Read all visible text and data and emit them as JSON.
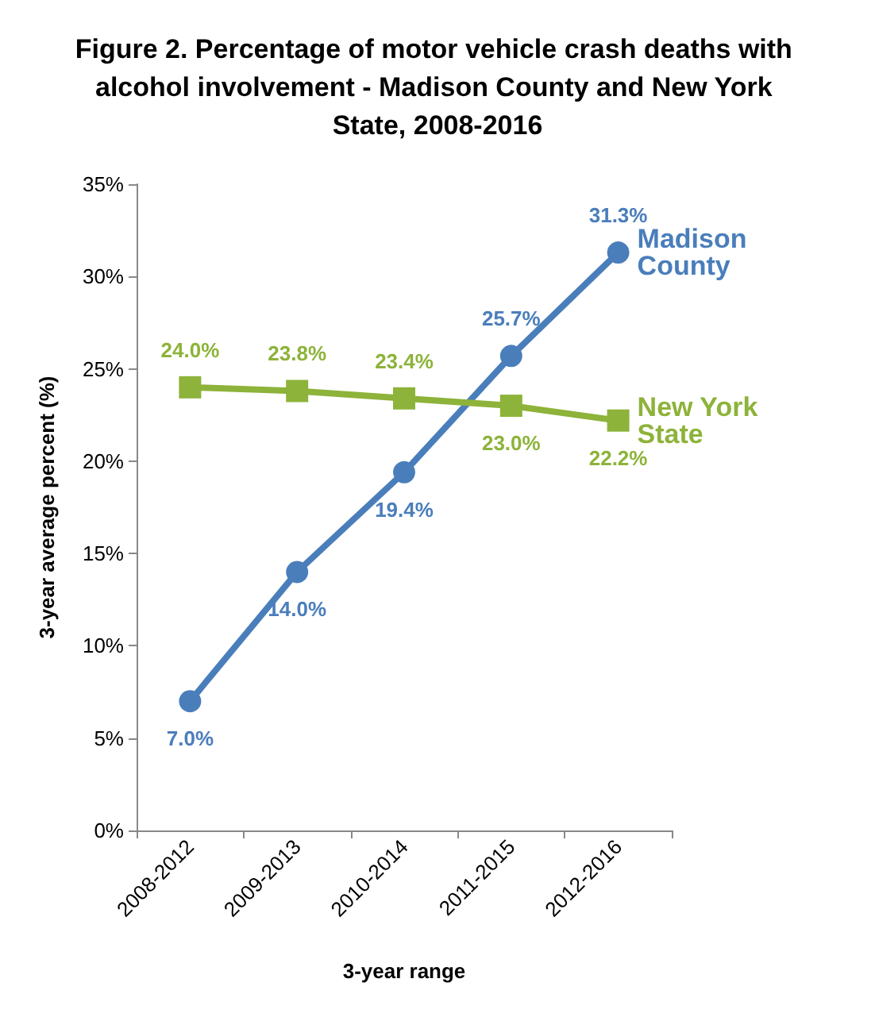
{
  "chart_data": {
    "type": "line",
    "title": "Figure 2. Percentage of motor vehicle crash deaths with alcohol involvement - Madison County and New York State, 2008-2016",
    "xlabel": "3-year range",
    "ylabel": "3-year average percent (%)",
    "categories": [
      "2008-2012",
      "2009-2013",
      "2010-2014",
      "2011-2015",
      "2012-2016"
    ],
    "series": [
      {
        "name": "Madison County",
        "color": "#4a7ebb",
        "marker": "circle",
        "values": [
          7.0,
          14.0,
          19.4,
          25.7,
          31.3
        ],
        "value_labels": [
          "7.0%",
          "14.0%",
          "19.4%",
          "25.7%",
          "31.3%"
        ]
      },
      {
        "name": "New York State",
        "color": "#8db33a",
        "marker": "square",
        "values": [
          24.0,
          23.8,
          23.4,
          23.0,
          22.2
        ],
        "value_labels": [
          "24.0%",
          "23.8%",
          "23.4%",
          "23.0%",
          "22.2%"
        ]
      }
    ],
    "ylim": [
      0,
      35
    ],
    "yticks": [
      {
        "value": 0,
        "label": "0%"
      },
      {
        "value": 5,
        "label": "5%"
      },
      {
        "value": 10,
        "label": "10%"
      },
      {
        "value": 15,
        "label": "15%"
      },
      {
        "value": 20,
        "label": "20%"
      },
      {
        "value": 25,
        "label": "25%"
      },
      {
        "value": 30,
        "label": "30%"
      },
      {
        "value": 35,
        "label": "35%"
      }
    ],
    "grid": false,
    "legend": false,
    "line_style": "solid"
  }
}
